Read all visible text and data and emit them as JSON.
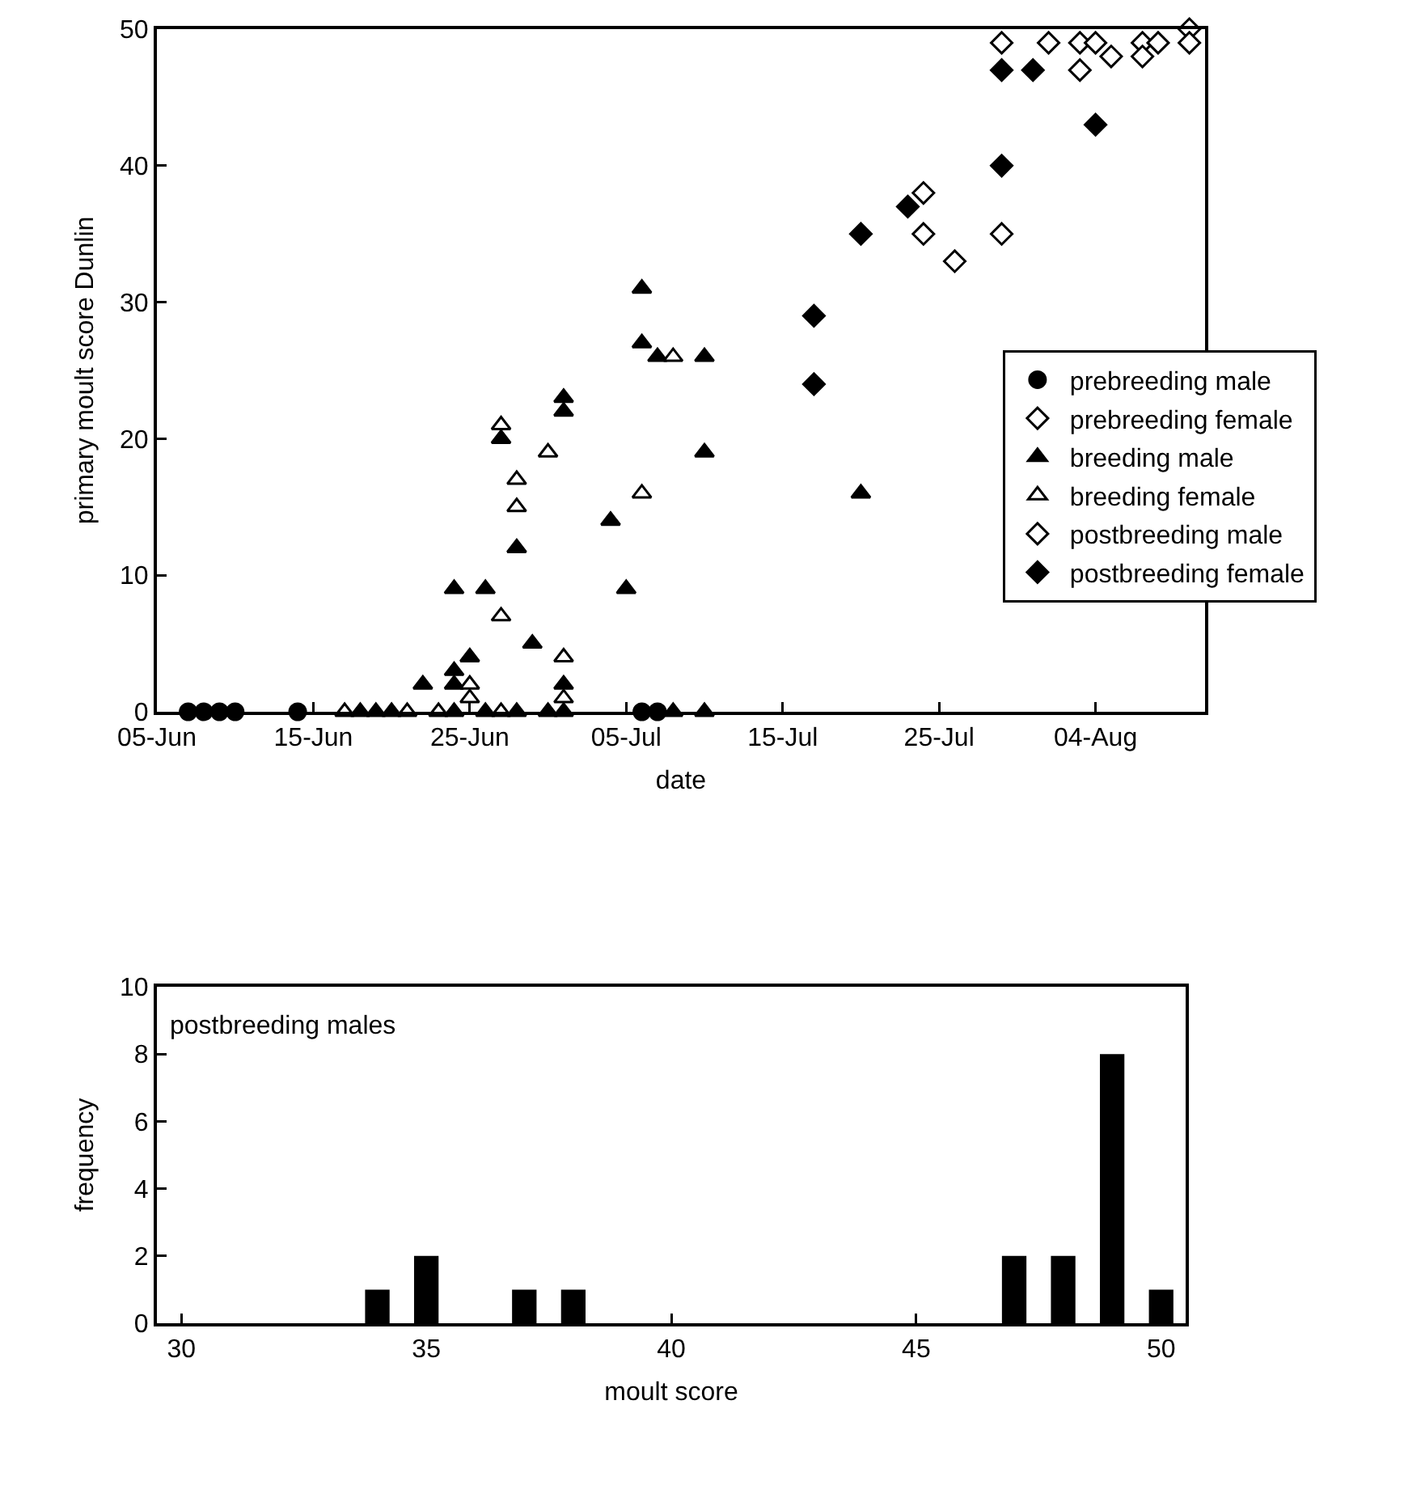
{
  "chart_data": [
    {
      "type": "scatter",
      "xlabel": "date",
      "ylabel": "primary moult score Dunlin",
      "legend": "right",
      "xlim": [
        "--06-05",
        "--08-11"
      ],
      "xticks": [
        {
          "value": "--06-05",
          "label": "05-Jun"
        },
        {
          "value": "--06-15",
          "label": "15-Jun"
        },
        {
          "value": "--06-25",
          "label": "25-Jun"
        },
        {
          "value": "--07-05",
          "label": "05-Jul"
        },
        {
          "value": "--07-15",
          "label": "15-Jul"
        },
        {
          "value": "--07-25",
          "label": "25-Jul"
        },
        {
          "value": "--08-04",
          "label": "04-Aug"
        }
      ],
      "ylim": [
        0,
        50
      ],
      "yticks": [
        0,
        10,
        20,
        30,
        40,
        50
      ],
      "series": [
        {
          "name": "prebreeding male",
          "color": "#000000",
          "marker": "circle",
          "x": [
            "--06-07",
            "--06-08",
            "--06-09",
            "--06-10",
            "--06-14",
            "--07-06",
            "--07-07"
          ],
          "values": [
            0,
            0,
            0,
            0,
            0,
            0,
            0
          ]
        },
        {
          "name": "prebreeding female",
          "color": "#ffffff",
          "marker": "diamond",
          "x": [
            "--07-26"
          ],
          "values": [
            33
          ]
        },
        {
          "name": "breeding male",
          "color": "#000000",
          "marker": "triangle",
          "x": [
            "--06-18",
            "--06-19",
            "--06-20",
            "--06-22",
            "--06-24",
            "--06-24",
            "--06-24",
            "--06-24",
            "--06-25",
            "--06-26",
            "--06-26",
            "--06-27",
            "--06-28",
            "--06-28",
            "--06-29",
            "--06-30",
            "--07-01",
            "--07-01",
            "--07-01",
            "--07-01",
            "--07-04",
            "--07-05",
            "--07-06",
            "--07-06",
            "--07-07",
            "--07-08",
            "--07-10",
            "--07-10",
            "--07-10",
            "--07-20"
          ],
          "values": [
            0,
            0,
            0,
            2,
            9,
            3,
            2,
            0,
            4,
            9,
            0,
            20,
            12,
            0,
            5,
            0,
            23,
            22,
            2,
            0,
            14,
            9,
            31,
            27,
            26,
            0,
            26,
            19,
            0,
            16
          ]
        },
        {
          "name": "breeding female",
          "color": "#ffffff",
          "marker": "triangle",
          "x": [
            "--06-17",
            "--06-21",
            "--06-23",
            "--06-25",
            "--06-25",
            "--06-27",
            "--06-27",
            "--06-27",
            "--06-28",
            "--06-28",
            "--06-30",
            "--07-01",
            "--07-01",
            "--07-06",
            "--07-08"
          ],
          "values": [
            0,
            0,
            0,
            2,
            1,
            21,
            7,
            0,
            17,
            15,
            19,
            4,
            1,
            16,
            26
          ]
        },
        {
          "name": "postbreeding male",
          "color": "#ffffff",
          "marker": "diamond",
          "x": [
            "--07-24",
            "--07-24",
            "--07-29",
            "--07-29",
            "--08-01",
            "--08-03",
            "--08-03",
            "--08-04",
            "--08-05",
            "--08-07",
            "--08-07",
            "--08-08",
            "--08-10",
            "--08-10"
          ],
          "values": [
            38,
            35,
            35,
            49,
            49,
            49,
            47,
            49,
            48,
            49,
            48,
            49,
            50,
            49
          ]
        },
        {
          "name": "postbreeding female",
          "color": "#000000",
          "marker": "diamond",
          "x": [
            "--07-17",
            "--07-17",
            "--07-20",
            "--07-23",
            "--07-29",
            "--07-29",
            "--07-31",
            "--08-04"
          ],
          "values": [
            29,
            24,
            35,
            37,
            40,
            47,
            47,
            43
          ]
        }
      ]
    },
    {
      "type": "histogram",
      "xlabel": "moult score",
      "ylabel": "frequency",
      "color": "#000000",
      "annotations": [
        "postbreeding males"
      ],
      "bins": [
        29.5,
        30.5,
        31.5,
        32.5,
        33.5,
        34.5,
        35.5,
        36.5,
        37.5,
        38.5,
        39.5,
        40.5,
        41.5,
        42.5,
        43.5,
        44.5,
        45.5,
        46.5,
        47.5,
        48.5,
        49.5,
        50.5
      ],
      "values": [
        0,
        0,
        0,
        0,
        1,
        2,
        0,
        1,
        1,
        0,
        0,
        0,
        0,
        0,
        0,
        0,
        0,
        2,
        2,
        8,
        1
      ],
      "xlim": [
        29.5,
        50.5
      ],
      "xticks": [
        30,
        35,
        40,
        45,
        50
      ],
      "ylim": [
        0,
        10
      ],
      "yticks": [
        0,
        2,
        4,
        6,
        8,
        10
      ]
    }
  ]
}
